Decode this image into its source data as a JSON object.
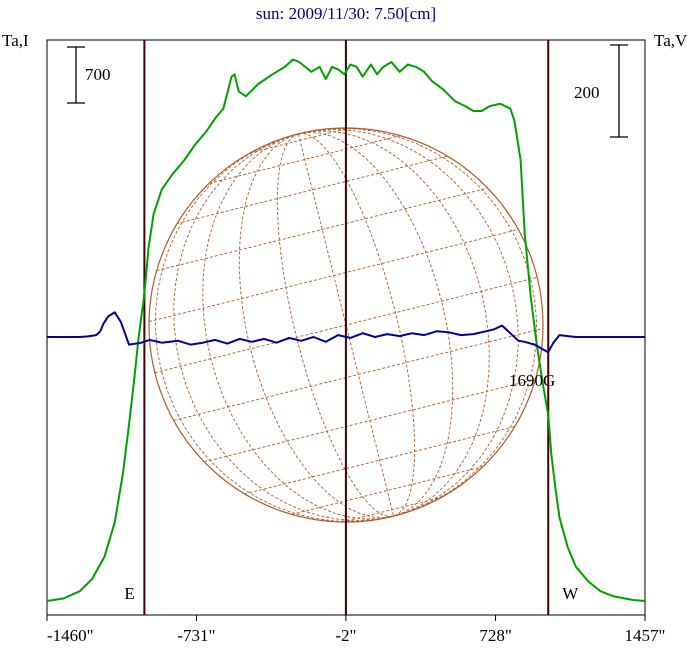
{
  "chart_data": {
    "type": "line",
    "title": "sun: 2009/11/30: 7.50[cm]",
    "left_axis_label": "Ta,I",
    "right_axis_label": "Ta,V",
    "left_scale_bar_label": "700",
    "right_scale_bar_label": "200",
    "x_ticks": [
      "-1460\"",
      "-731\"",
      "-2\"",
      "728\"",
      "1457\""
    ],
    "x_tick_values": [
      -1460,
      -731,
      -2,
      728,
      1457
    ],
    "xlim": [
      -1460,
      1457
    ],
    "vertical_markers": [
      {
        "x": -985,
        "label": "E"
      },
      {
        "x": -2,
        "label": ""
      },
      {
        "x": 985,
        "label": "W"
      }
    ],
    "annotation": "1690G",
    "solar_disk_grid": true,
    "colors": {
      "stokes_i": "#00a000",
      "stokes_v": "#0000a0",
      "disk": "#b05a28",
      "markers": "#400000",
      "title": "#000080"
    },
    "series": [
      {
        "key": "stokes_i",
        "color": "#00a000",
        "x": [
          -1460,
          -1380,
          -1300,
          -1240,
          -1180,
          -1130,
          -1090,
          -1060,
          -1035,
          -1015,
          -1000,
          -990,
          -980,
          -965,
          -940,
          -900,
          -850,
          -790,
          -740,
          -680,
          -640,
          -600,
          -560,
          -545,
          -525,
          -490,
          -430,
          -360,
          -300,
          -260,
          -230,
          -200,
          -170,
          -130,
          -100,
          -70,
          -40,
          -10,
          20,
          50,
          80,
          120,
          150,
          180,
          220,
          260,
          300,
          340,
          380,
          420,
          470,
          530,
          580,
          620,
          660,
          700,
          750,
          800,
          820,
          850,
          870,
          900,
          930,
          960,
          985,
          1000,
          1020,
          1040,
          1080,
          1120,
          1180,
          1240,
          1300,
          1360,
          1400,
          1457
        ],
        "y": [
          0,
          5,
          20,
          45,
          90,
          160,
          260,
          360,
          450,
          530,
          580,
          610,
          650,
          720,
          790,
          840,
          870,
          900,
          930,
          960,
          985,
          1005,
          1070,
          1075,
          1040,
          1030,
          1055,
          1075,
          1090,
          1105,
          1100,
          1090,
          1080,
          1090,
          1065,
          1090,
          1085,
          1075,
          1095,
          1090,
          1070,
          1095,
          1075,
          1090,
          1100,
          1080,
          1095,
          1090,
          1080,
          1060,
          1045,
          1020,
          1010,
          1000,
          1000,
          1010,
          1015,
          1005,
          980,
          900,
          750,
          620,
          520,
          440,
          380,
          300,
          230,
          170,
          110,
          70,
          40,
          20,
          10,
          5,
          2,
          0
        ]
      },
      {
        "key": "stokes_v",
        "color": "#0000a0",
        "x": [
          -1460,
          -1300,
          -1260,
          -1220,
          -1200,
          -1185,
          -1160,
          -1130,
          -1100,
          -1060,
          -1000,
          -960,
          -900,
          -820,
          -760,
          -700,
          -640,
          -580,
          -520,
          -460,
          -400,
          -340,
          -280,
          -220,
          -160,
          -100,
          -40,
          20,
          80,
          140,
          200,
          260,
          320,
          380,
          440,
          500,
          560,
          620,
          680,
          720,
          760,
          800,
          840,
          870,
          900,
          920,
          950,
          985,
          1010,
          1040,
          1080,
          1120,
          1200,
          1300,
          1457
        ],
        "y": [
          0,
          0,
          3,
          10,
          30,
          70,
          110,
          130,
          80,
          -40,
          -30,
          -15,
          -30,
          -20,
          -40,
          -30,
          -15,
          -35,
          -10,
          -25,
          -10,
          -30,
          -5,
          -20,
          0,
          -25,
          10,
          -5,
          20,
          0,
          15,
          5,
          20,
          10,
          30,
          25,
          10,
          15,
          30,
          40,
          60,
          20,
          -20,
          -25,
          -35,
          -40,
          -60,
          -80,
          -30,
          10,
          5,
          0,
          0,
          0,
          0
        ]
      }
    ]
  }
}
